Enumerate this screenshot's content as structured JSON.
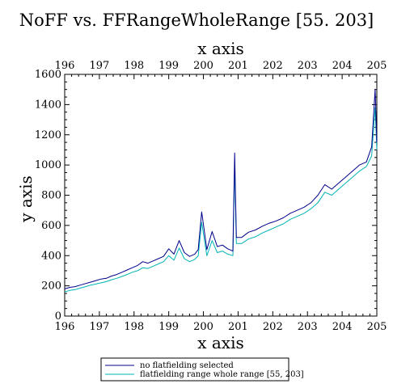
{
  "chart_data": {
    "type": "line",
    "title": "NoFF vs. FFRangeWholeRange [55. 203]",
    "xlabel": "x axis",
    "xlabel_top": "x axis",
    "ylabel": "y axis",
    "xlim": [
      196,
      205
    ],
    "ylim": [
      0,
      1600
    ],
    "x_ticks": [
      196,
      197,
      198,
      199,
      200,
      201,
      202,
      203,
      204,
      205
    ],
    "x_tick_labels": [
      "196",
      "197",
      "198",
      "199",
      "200",
      "201",
      "202",
      "203",
      "204",
      "205"
    ],
    "y_ticks": [
      0,
      200,
      400,
      600,
      800,
      1000,
      1200,
      1400,
      1600
    ],
    "y_tick_labels": [
      "0",
      "200",
      "400",
      "600",
      "800",
      "1000",
      "1200",
      "1400",
      "1600"
    ],
    "grid": false,
    "legend_position": "bottom-center",
    "series": [
      {
        "name": "no flatfielding selected",
        "color": "#00008b",
        "x": [
          196.0,
          196.15,
          196.3,
          196.45,
          196.6,
          196.75,
          196.9,
          197.05,
          197.2,
          197.35,
          197.5,
          197.65,
          197.8,
          197.95,
          198.1,
          198.25,
          198.4,
          198.55,
          198.7,
          198.85,
          199.0,
          199.15,
          199.3,
          199.45,
          199.6,
          199.75,
          199.85,
          199.95,
          200.1,
          200.25,
          200.4,
          200.55,
          200.7,
          200.85,
          200.9,
          200.95,
          201.1,
          201.3,
          201.5,
          201.7,
          201.9,
          202.1,
          202.3,
          202.5,
          202.7,
          202.9,
          203.1,
          203.3,
          203.5,
          203.7,
          203.9,
          204.1,
          204.3,
          204.5,
          204.7,
          204.85,
          204.95,
          205.0
        ],
        "values": [
          180,
          190,
          195,
          205,
          215,
          225,
          235,
          245,
          250,
          265,
          275,
          290,
          305,
          320,
          335,
          360,
          350,
          365,
          380,
          395,
          445,
          410,
          500,
          420,
          395,
          410,
          440,
          690,
          440,
          560,
          460,
          470,
          445,
          430,
          1080,
          520,
          520,
          555,
          570,
          595,
          615,
          630,
          650,
          680,
          700,
          720,
          750,
          800,
          870,
          840,
          880,
          920,
          960,
          1000,
          1020,
          1120,
          1500,
          1150
        ]
      },
      {
        "name": "flatfielding range whole range [55, 203]",
        "color": "#00b3b3",
        "x": [
          196.0,
          196.15,
          196.3,
          196.45,
          196.6,
          196.75,
          196.9,
          197.05,
          197.2,
          197.35,
          197.5,
          197.65,
          197.8,
          197.95,
          198.1,
          198.25,
          198.4,
          198.55,
          198.7,
          198.85,
          199.0,
          199.15,
          199.3,
          199.45,
          199.6,
          199.75,
          199.85,
          199.95,
          200.1,
          200.25,
          200.4,
          200.55,
          200.7,
          200.85,
          200.9,
          200.95,
          201.1,
          201.3,
          201.5,
          201.7,
          201.9,
          202.1,
          202.3,
          202.5,
          202.7,
          202.9,
          203.1,
          203.3,
          203.5,
          203.7,
          203.9,
          204.1,
          204.3,
          204.5,
          204.7,
          204.85,
          204.95,
          205.0
        ],
        "values": [
          160,
          170,
          175,
          185,
          195,
          205,
          212,
          220,
          228,
          240,
          250,
          262,
          275,
          290,
          300,
          320,
          315,
          330,
          345,
          360,
          400,
          370,
          450,
          380,
          360,
          375,
          400,
          620,
          400,
          500,
          420,
          430,
          410,
          400,
          1000,
          480,
          480,
          510,
          525,
          550,
          570,
          590,
          610,
          640,
          660,
          680,
          710,
          750,
          820,
          800,
          840,
          880,
          920,
          960,
          990,
          1060,
          1380,
          1100
        ]
      }
    ]
  }
}
